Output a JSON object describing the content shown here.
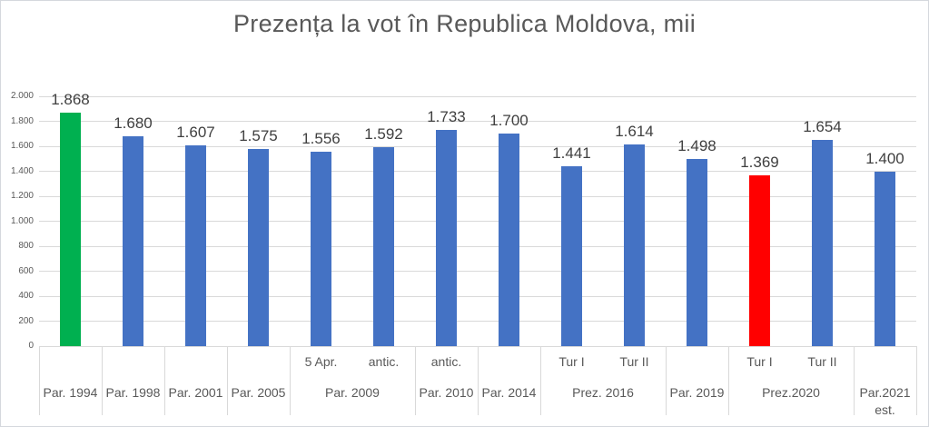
{
  "title": "Prezența la vot în Republica Moldova, mii",
  "colors": {
    "bar_default": "#4472C4",
    "bar_highlight_max": "#00B050",
    "bar_highlight_min": "#FF0000",
    "gridline": "#d9d9d9",
    "title_text": "#595959",
    "axis_text": "#595959",
    "value_label_text": "#404040"
  },
  "chart_data": {
    "type": "bar",
    "title": "Prezența la vot în Republica Moldova, mii",
    "xlabel": "",
    "ylabel": "",
    "ylim": [
      0,
      2000
    ],
    "ytick_step": 200,
    "yticks": [
      {
        "value": 0,
        "label": "0"
      },
      {
        "value": 200,
        "label": "200"
      },
      {
        "value": 400,
        "label": "400"
      },
      {
        "value": 600,
        "label": "600"
      },
      {
        "value": 800,
        "label": "800"
      },
      {
        "value": 1000,
        "label": "1.000"
      },
      {
        "value": 1200,
        "label": "1.200"
      },
      {
        "value": 1400,
        "label": "1.400"
      },
      {
        "value": 1600,
        "label": "1.600"
      },
      {
        "value": 1800,
        "label": "1.800"
      },
      {
        "value": 2000,
        "label": "2.000"
      }
    ],
    "grid": true,
    "legend": "none",
    "bars": [
      {
        "value": 1868,
        "label": "1.868",
        "sublabel": "",
        "group": "Par. 1994",
        "color": "#00B050"
      },
      {
        "value": 1680,
        "label": "1.680",
        "sublabel": "",
        "group": "Par. 1998"
      },
      {
        "value": 1607,
        "label": "1.607",
        "sublabel": "",
        "group": "Par. 2001"
      },
      {
        "value": 1575,
        "label": "1.575",
        "sublabel": "",
        "group": "Par. 2005"
      },
      {
        "value": 1556,
        "label": "1.556",
        "sublabel": "5 Apr.",
        "group": "Par. 2009"
      },
      {
        "value": 1592,
        "label": "1.592",
        "sublabel": "antic.",
        "group": "Par. 2009"
      },
      {
        "value": 1733,
        "label": "1.733",
        "sublabel": "antic.",
        "group": "Par. 2010"
      },
      {
        "value": 1700,
        "label": "1.700",
        "sublabel": "",
        "group": "Par. 2014"
      },
      {
        "value": 1441,
        "label": "1.441",
        "sublabel": "Tur I",
        "group": "Prez. 2016"
      },
      {
        "value": 1614,
        "label": "1.614",
        "sublabel": "Tur II",
        "group": "Prez. 2016"
      },
      {
        "value": 1498,
        "label": "1.498",
        "sublabel": "",
        "group": "Par. 2019"
      },
      {
        "value": 1369,
        "label": "1.369",
        "sublabel": "Tur I",
        "group": "Prez.2020",
        "color": "#FF0000"
      },
      {
        "value": 1654,
        "label": "1.654",
        "sublabel": "Tur II",
        "group": "Prez.2020"
      },
      {
        "value": 1400,
        "label": "1.400",
        "sublabel": "",
        "group": "Par.2021 est."
      }
    ],
    "groups": [
      {
        "label": "Par. 1994",
        "slots": 1
      },
      {
        "label": "Par. 1998",
        "slots": 1
      },
      {
        "label": "Par. 2001",
        "slots": 1
      },
      {
        "label": "Par. 2005",
        "slots": 1
      },
      {
        "label": "Par. 2009",
        "slots": 2
      },
      {
        "label": "Par. 2010",
        "slots": 1
      },
      {
        "label": "Par. 2014",
        "slots": 1
      },
      {
        "label": "Prez. 2016",
        "slots": 2
      },
      {
        "label": "Par. 2019",
        "slots": 1
      },
      {
        "label": "Prez.2020",
        "slots": 2
      },
      {
        "label": "Par.2021 est.",
        "slots": 1
      }
    ]
  }
}
